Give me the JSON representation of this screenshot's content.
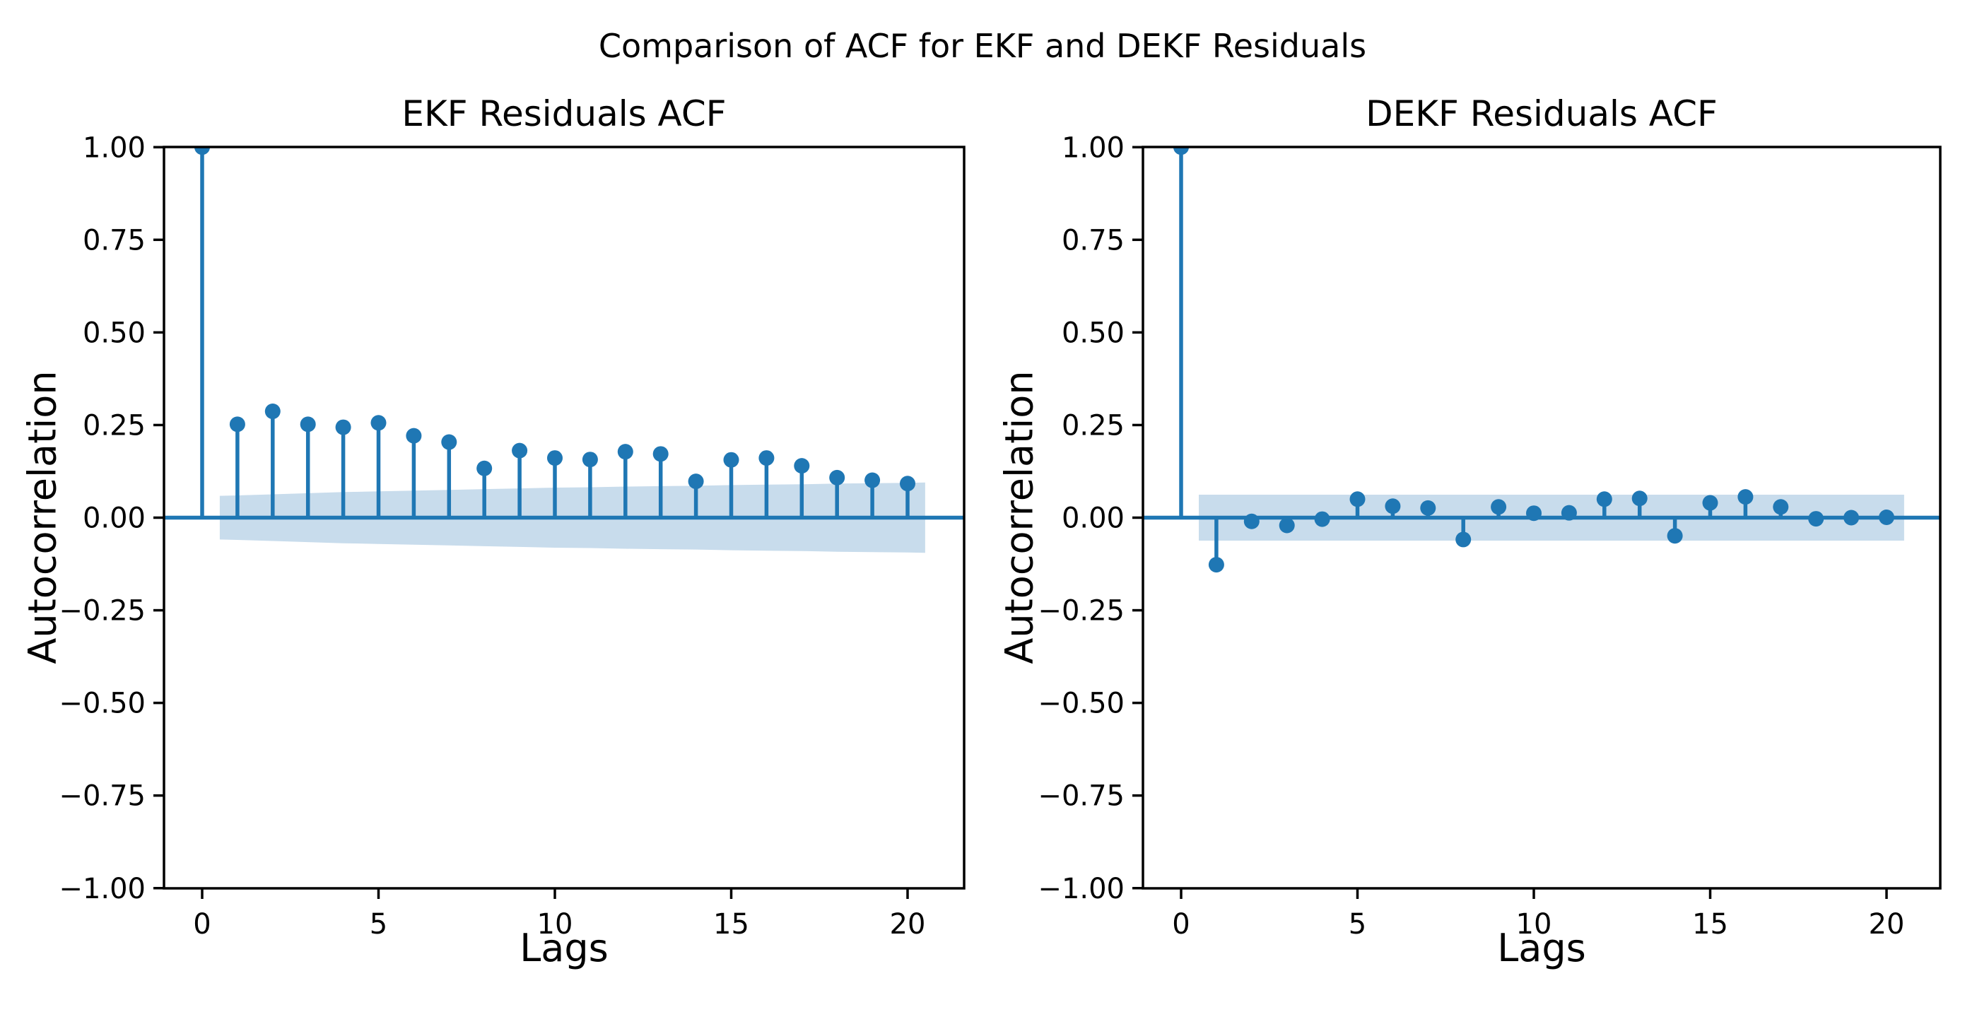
{
  "figure": {
    "suptitle": "Comparison of ACF for EKF and DEKF Residuals",
    "background_color": "#ffffff",
    "text_color": "#000000"
  },
  "style": {
    "accent_color": "#1f77b4",
    "band_fill_color": "#c8dcec",
    "spine_color": "#000000"
  },
  "chart_data": [
    {
      "type": "stem",
      "title": "EKF Residuals ACF",
      "xlabel": "Lags",
      "ylabel": "Autocorrelation",
      "xlim": [
        -1.08,
        21.6
      ],
      "ylim": [
        -1.0,
        1.0
      ],
      "grid": "off",
      "legend": "none",
      "xtick_values": [
        0,
        5,
        10,
        15,
        20
      ],
      "xtick_labels": [
        "0",
        "5",
        "10",
        "15",
        "20"
      ],
      "ytick_values": [
        1.0,
        0.75,
        0.5,
        0.25,
        0.0,
        -0.25,
        -0.5,
        -0.75,
        -1.0
      ],
      "ytick_labels": [
        "1.00",
        "0.75",
        "0.50",
        "0.25",
        "0.00",
        "−0.25",
        "−0.50",
        "−0.75",
        "−1.00"
      ],
      "lags": [
        0,
        1,
        2,
        3,
        4,
        5,
        6,
        7,
        8,
        9,
        10,
        11,
        12,
        13,
        14,
        15,
        16,
        17,
        18,
        19,
        20
      ],
      "acf_values": [
        1.0,
        0.252,
        0.287,
        0.252,
        0.244,
        0.256,
        0.221,
        0.204,
        0.133,
        0.181,
        0.161,
        0.157,
        0.178,
        0.172,
        0.098,
        0.156,
        0.161,
        0.14,
        0.108,
        0.101,
        0.092
      ],
      "conf_band": {
        "x": [
          0.5,
          1,
          2,
          3,
          4,
          5,
          6,
          7,
          8,
          9,
          10,
          11,
          12,
          13,
          14,
          15,
          16,
          17,
          18,
          19,
          20,
          20.5
        ],
        "upper": [
          0.059,
          0.06,
          0.063,
          0.066,
          0.069,
          0.071,
          0.073,
          0.075,
          0.077,
          0.079,
          0.081,
          0.082,
          0.084,
          0.085,
          0.086,
          0.088,
          0.089,
          0.09,
          0.092,
          0.093,
          0.094,
          0.095
        ],
        "lower": [
          -0.059,
          -0.06,
          -0.063,
          -0.066,
          -0.069,
          -0.071,
          -0.073,
          -0.075,
          -0.077,
          -0.079,
          -0.081,
          -0.082,
          -0.084,
          -0.085,
          -0.086,
          -0.088,
          -0.089,
          -0.09,
          -0.092,
          -0.093,
          -0.094,
          -0.095
        ]
      }
    },
    {
      "type": "stem",
      "title": "DEKF Residuals ACF",
      "xlabel": "Lags",
      "ylabel": "Autocorrelation",
      "xlim": [
        -1.08,
        21.5
      ],
      "ylim": [
        -1.0,
        1.0
      ],
      "grid": "off",
      "legend": "none",
      "xtick_values": [
        0,
        5,
        10,
        15,
        20
      ],
      "xtick_labels": [
        "0",
        "5",
        "10",
        "15",
        "20"
      ],
      "ytick_values": [
        1.0,
        0.75,
        0.5,
        0.25,
        0.0,
        -0.25,
        -0.5,
        -0.75,
        -1.0
      ],
      "ytick_labels": [
        "1.00",
        "0.75",
        "0.50",
        "0.25",
        "0.00",
        "−0.25",
        "−0.50",
        "−0.75",
        "−1.00"
      ],
      "lags": [
        0,
        1,
        2,
        3,
        4,
        5,
        6,
        7,
        8,
        9,
        10,
        11,
        12,
        13,
        14,
        15,
        16,
        17,
        18,
        19,
        20
      ],
      "acf_values": [
        1.0,
        -0.127,
        -0.01,
        -0.021,
        -0.004,
        0.05,
        0.031,
        0.026,
        -0.059,
        0.029,
        0.012,
        0.013,
        0.05,
        0.052,
        -0.049,
        0.04,
        0.056,
        0.029,
        -0.003,
        0.0,
        0.001
      ],
      "conf_band": {
        "x": [
          0.5,
          20.5
        ],
        "upper": [
          0.062,
          0.062
        ],
        "lower": [
          -0.062,
          -0.062
        ]
      }
    }
  ]
}
